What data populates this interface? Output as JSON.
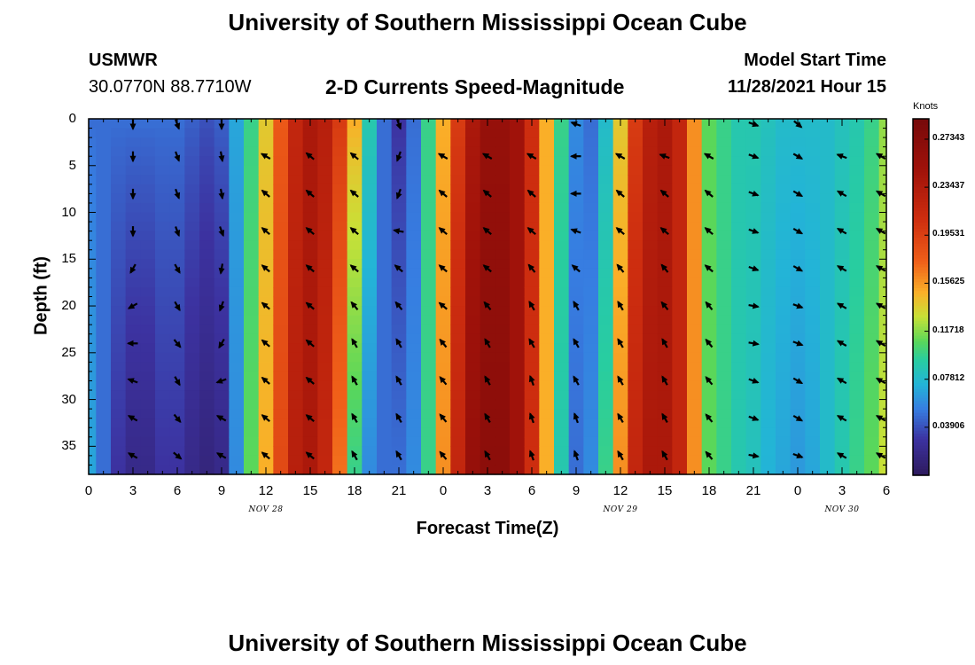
{
  "page": {
    "title_top": "University of Southern Mississippi Ocean Cube",
    "title_bottom": "University of Southern Mississippi Ocean Cube",
    "station": "USMWR",
    "coords": "30.0770N  88.7710W",
    "subtitle": "2-D Currents Speed-Magnitude",
    "model_start_label": "Model Start Time",
    "model_start_value": "11/28/2021 Hour 15"
  },
  "colors": {
    "background": "#ffffff",
    "arrow": "#000000"
  },
  "chart_data": {
    "type": "heatmap",
    "title": "2-D Currents Speed-Magnitude",
    "xlabel": "Forecast Time(Z)",
    "ylabel": "Depth (ft)",
    "x_tick_labels": [
      "0",
      "3",
      "6",
      "9",
      "12",
      "15",
      "18",
      "21",
      "0",
      "3",
      "6",
      "9",
      "12",
      "15",
      "18",
      "21",
      "0",
      "3",
      "6"
    ],
    "x_hours": [
      0,
      3,
      6,
      9,
      12,
      15,
      18,
      21,
      24,
      27,
      30,
      33,
      36,
      39,
      42,
      45,
      48,
      51,
      54
    ],
    "date_labels": [
      {
        "text": "NOV 28",
        "hour": 12
      },
      {
        "text": "NOV 29",
        "hour": 36
      },
      {
        "text": "NOV 30",
        "hour": 51
      }
    ],
    "xlim": [
      0,
      54
    ],
    "y_tick_labels": [
      "0",
      "5",
      "10",
      "15",
      "20",
      "25",
      "30",
      "35"
    ],
    "y_ticks": [
      0,
      5,
      10,
      15,
      20,
      25,
      30,
      35
    ],
    "ylim": [
      0,
      38
    ],
    "colorbar": {
      "unit": "Knots",
      "min": 0.0,
      "max": 0.29,
      "tick_labels": [
        "0.27343",
        "0.23437",
        "0.19531",
        "0.15625",
        "0.11718",
        "0.07812",
        "0.03906"
      ],
      "tick_values": [
        0.27343,
        0.23437,
        0.19531,
        0.15625,
        0.11718,
        0.07812,
        0.03906
      ]
    },
    "speed_profile": {
      "hours": [
        0,
        1,
        2,
        3,
        4,
        5,
        6,
        7,
        8,
        9,
        10,
        11,
        12,
        13,
        14,
        15,
        16,
        17,
        18,
        19,
        20,
        21,
        22,
        23,
        24,
        25,
        26,
        27,
        28,
        29,
        30,
        31,
        32,
        33,
        34,
        35,
        36,
        37,
        38,
        39,
        40,
        41,
        42,
        43,
        44,
        45,
        46,
        47,
        48,
        49,
        50,
        51,
        52,
        53,
        54
      ],
      "surface": [
        0.05,
        0.05,
        0.05,
        0.05,
        0.05,
        0.05,
        0.05,
        0.045,
        0.04,
        0.045,
        0.07,
        0.1,
        0.14,
        0.18,
        0.22,
        0.24,
        0.23,
        0.2,
        0.15,
        0.09,
        0.05,
        0.03,
        0.05,
        0.1,
        0.15,
        0.2,
        0.24,
        0.26,
        0.26,
        0.25,
        0.21,
        0.15,
        0.1,
        0.06,
        0.05,
        0.08,
        0.14,
        0.2,
        0.23,
        0.24,
        0.22,
        0.16,
        0.11,
        0.1,
        0.09,
        0.09,
        0.085,
        0.08,
        0.08,
        0.08,
        0.08,
        0.085,
        0.09,
        0.1,
        0.12
      ],
      "bottom": [
        0.07,
        0.05,
        0.03,
        0.02,
        0.02,
        0.03,
        0.03,
        0.02,
        0.015,
        0.02,
        0.06,
        0.11,
        0.15,
        0.19,
        0.23,
        0.24,
        0.22,
        0.17,
        0.1,
        0.06,
        0.05,
        0.05,
        0.06,
        0.1,
        0.16,
        0.22,
        0.26,
        0.27,
        0.27,
        0.25,
        0.21,
        0.15,
        0.09,
        0.05,
        0.06,
        0.1,
        0.16,
        0.22,
        0.24,
        0.24,
        0.22,
        0.16,
        0.11,
        0.1,
        0.09,
        0.085,
        0.075,
        0.07,
        0.065,
        0.07,
        0.08,
        0.09,
        0.1,
        0.11,
        0.13
      ]
    },
    "vectors": {
      "hours": [
        3,
        6,
        9,
        12,
        15,
        18,
        21,
        24,
        27,
        30,
        33,
        36,
        39,
        42,
        45,
        48,
        51,
        54
      ],
      "depths": [
        0,
        4,
        8,
        12,
        16,
        20,
        24,
        28,
        32,
        36
      ],
      "directions_deg_from_north": [
        [
          180,
          160,
          180,
          null,
          null,
          null,
          160,
          null,
          null,
          null,
          290,
          null,
          null,
          null,
          110,
          130,
          null,
          null
        ],
        [
          180,
          160,
          170,
          300,
          310,
          310,
          200,
          300,
          300,
          300,
          270,
          300,
          290,
          300,
          110,
          120,
          290,
          300
        ],
        [
          180,
          160,
          170,
          310,
          310,
          310,
          200,
          310,
          310,
          310,
          270,
          310,
          310,
          310,
          110,
          120,
          300,
          300
        ],
        [
          180,
          160,
          160,
          310,
          310,
          310,
          280,
          310,
          310,
          310,
          290,
          310,
          310,
          310,
          110,
          120,
          300,
          300
        ],
        [
          210,
          150,
          190,
          310,
          310,
          310,
          310,
          310,
          310,
          320,
          310,
          320,
          320,
          310,
          110,
          120,
          300,
          300
        ],
        [
          240,
          150,
          200,
          310,
          310,
          320,
          320,
          310,
          320,
          330,
          330,
          330,
          320,
          320,
          100,
          110,
          300,
          300
        ],
        [
          270,
          140,
          210,
          310,
          310,
          330,
          330,
          320,
          330,
          330,
          330,
          330,
          330,
          320,
          100,
          110,
          300,
          300
        ],
        [
          290,
          150,
          250,
          310,
          310,
          330,
          330,
          320,
          330,
          340,
          330,
          330,
          330,
          320,
          110,
          120,
          300,
          300
        ],
        [
          300,
          140,
          300,
          310,
          310,
          330,
          330,
          320,
          330,
          340,
          340,
          330,
          330,
          320,
          110,
          120,
          300,
          300
        ],
        [
          300,
          130,
          300,
          310,
          310,
          330,
          330,
          320,
          330,
          340,
          340,
          330,
          330,
          320,
          100,
          110,
          300,
          300
        ]
      ]
    }
  }
}
